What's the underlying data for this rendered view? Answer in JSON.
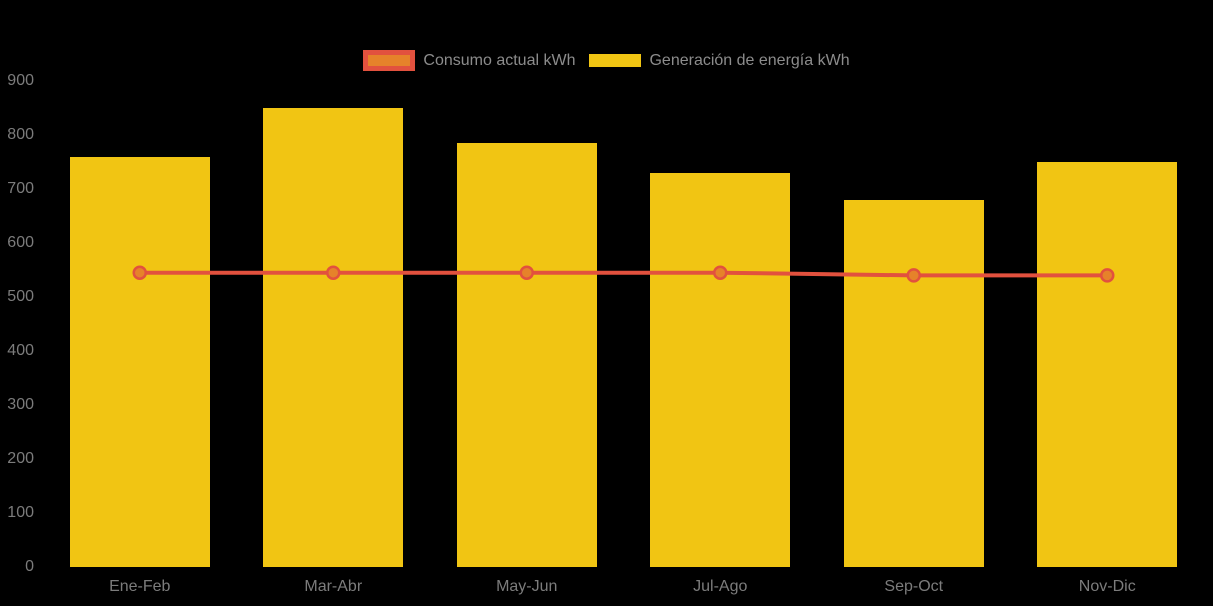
{
  "chart_data": {
    "type": "combo_bar_line",
    "title": "",
    "xlabel": "",
    "ylabel": "",
    "categories": [
      "Ene-Feb",
      "Mar-Abr",
      "May-Jun",
      "Jul-Ago",
      "Sep-Oct",
      "Nov-Dic"
    ],
    "series": [
      {
        "name": "Consumo actual kWh",
        "type": "line",
        "values": [
          545,
          545,
          545,
          545,
          540,
          540
        ],
        "line_color": "#e2513e",
        "point_fill": "#e6822a",
        "point_stroke": "#e2513e"
      },
      {
        "name": "Generación de energía kWh",
        "type": "bar",
        "values": [
          760,
          850,
          785,
          730,
          680,
          750
        ],
        "color": "#f1c513"
      }
    ],
    "ylim": [
      0,
      900
    ],
    "yticks": [
      900,
      800,
      700,
      600,
      500,
      400,
      300,
      200,
      100,
      0
    ],
    "grid": false,
    "legend_position": "top",
    "background": "#000000",
    "axis_text_color": "#7c7c7c",
    "legend_text_color": "#8c8c8c"
  }
}
